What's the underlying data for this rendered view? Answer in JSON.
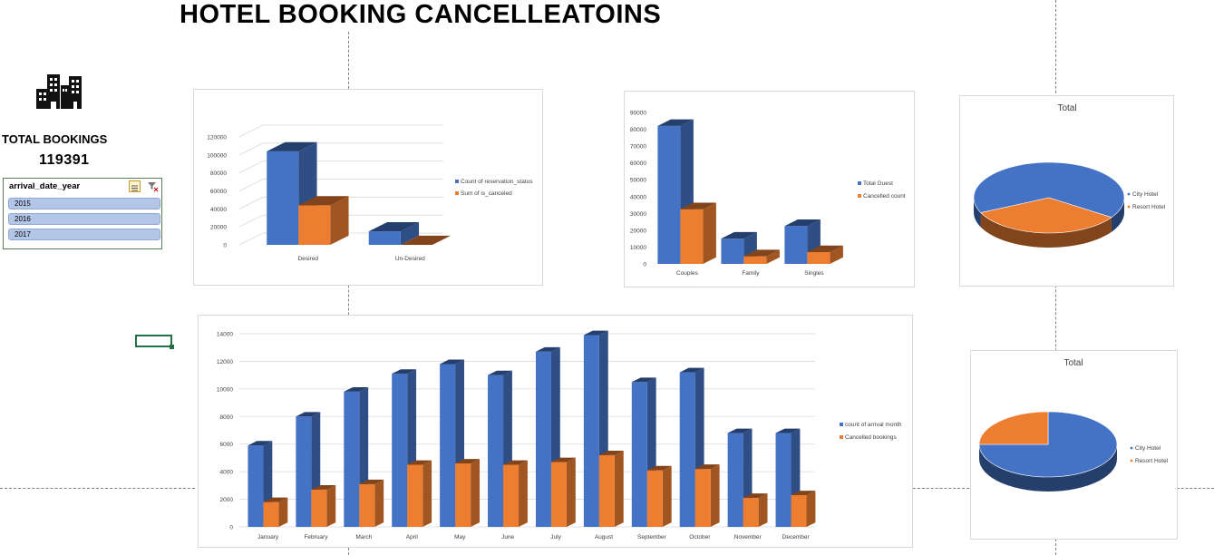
{
  "title": "HOTEL BOOKING CANCELLEATOINS",
  "total_bookings": {
    "label": "TOTAL BOOKINGS",
    "value": "119391"
  },
  "slicer": {
    "title": "arrival_date_year",
    "items": [
      "2015",
      "2016",
      "2017"
    ]
  },
  "icons": {
    "city": "city-buildings-icon",
    "multi_select": "multi-select-icon",
    "clear_filter": "clear-filter-icon"
  },
  "colors": {
    "blue": "#4472c4",
    "orange": "#ed7d31"
  },
  "chart_data": [
    {
      "type": "bar",
      "categories": [
        "Desired",
        "Un-Desired"
      ],
      "series": [
        {
          "name": "Count of reservation_status",
          "values": [
            104000,
            15000
          ]
        },
        {
          "name": "Sum of is_canceled",
          "values": [
            44000,
            0
          ]
        }
      ],
      "ylim": [
        0,
        120000
      ],
      "yticks": [
        "0",
        "20000",
        "40000",
        "60000",
        "80000",
        "100000",
        "120000"
      ],
      "legend": "right",
      "grid": true
    },
    {
      "type": "bar",
      "categories": [
        "Couples",
        "Family",
        "Singles"
      ],
      "series": [
        {
          "name": "Total Guest",
          "values": [
            82000,
            15000,
            22500
          ]
        },
        {
          "name": "Cancelled count",
          "values": [
            32500,
            4500,
            7000
          ]
        }
      ],
      "ylim": [
        0,
        90000
      ],
      "yticks": [
        "0",
        "10000",
        "20000",
        "30000",
        "40000",
        "50000",
        "60000",
        "70000",
        "80000",
        "90000"
      ],
      "legend": "right",
      "grid": false
    },
    {
      "type": "pie",
      "title": "Total",
      "labels": [
        "City Hotel",
        "Resort Hotel"
      ],
      "values": [
        66.4,
        33.6
      ],
      "legend": "right"
    },
    {
      "type": "bar",
      "categories": [
        "January",
        "February",
        "March",
        "April",
        "May",
        "June",
        "July",
        "August",
        "September",
        "October",
        "November",
        "December"
      ],
      "series": [
        {
          "name": "count of arrival month",
          "values": [
            5900,
            8000,
            9800,
            11100,
            11800,
            11000,
            12700,
            13900,
            10500,
            11200,
            6800,
            6800
          ]
        },
        {
          "name": "Cancelled bookings",
          "values": [
            1800,
            2700,
            3100,
            4500,
            4600,
            4500,
            4700,
            5200,
            4100,
            4200,
            2100,
            2300
          ]
        }
      ],
      "ylim": [
        0,
        14000
      ],
      "yticks": [
        "0",
        "2000",
        "4000",
        "6000",
        "8000",
        "10000",
        "12000",
        "14000"
      ],
      "legend": "right",
      "grid": true
    },
    {
      "type": "pie",
      "title": "Total",
      "labels": [
        "City Hotel",
        "Resort Hotel"
      ],
      "values": [
        75,
        25
      ],
      "legend": "right"
    }
  ]
}
